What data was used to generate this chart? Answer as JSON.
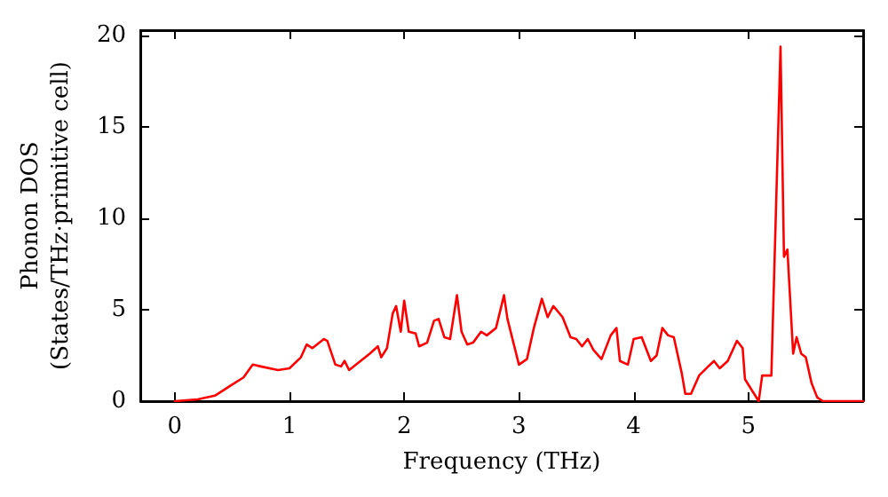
{
  "chart_data": {
    "type": "line",
    "xlabel": "Frequency (THz)",
    "ylabel": "Phonon DOS\n(States/THz·primitive cell)",
    "xlim": [
      -0.3,
      6.0
    ],
    "xticks": [
      0,
      1,
      2,
      3,
      4,
      5
    ],
    "ylim": [
      0,
      20.3
    ],
    "yticks": [
      0,
      5,
      10,
      15,
      20
    ],
    "grid": false,
    "marker": "none",
    "line_style": "solid",
    "x": [
      0,
      0.2,
      0.35,
      0.5,
      0.6,
      0.68,
      0.75,
      0.9,
      1.0,
      1.1,
      1.15,
      1.2,
      1.3,
      1.33,
      1.4,
      1.45,
      1.48,
      1.52,
      1.6,
      1.7,
      1.77,
      1.8,
      1.85,
      1.9,
      1.93,
      1.97,
      2.0,
      2.04,
      2.1,
      2.13,
      2.2,
      2.26,
      2.3,
      2.35,
      2.4,
      2.46,
      2.5,
      2.55,
      2.6,
      2.67,
      2.72,
      2.8,
      2.87,
      2.9,
      3.0,
      3.07,
      3.13,
      3.2,
      3.25,
      3.3,
      3.38,
      3.45,
      3.5,
      3.55,
      3.6,
      3.65,
      3.72,
      3.8,
      3.85,
      3.88,
      3.95,
      4.0,
      4.07,
      4.15,
      4.2,
      4.25,
      4.3,
      4.35,
      4.42,
      4.45,
      4.5,
      4.57,
      4.65,
      4.7,
      4.75,
      4.82,
      4.9,
      4.95,
      4.97,
      5.05,
      5.09,
      5.12,
      5.2,
      5.28,
      5.31,
      5.34,
      5.39,
      5.42,
      5.46,
      5.5,
      5.55,
      5.6,
      5.65,
      6.0
    ],
    "series": [
      {
        "color": "#ff0000",
        "values": [
          0,
          0.1,
          0.3,
          0.9,
          1.3,
          2.0,
          1.9,
          1.7,
          1.8,
          2.4,
          3.1,
          2.9,
          3.4,
          3.3,
          2.0,
          1.9,
          2.2,
          1.7,
          2.1,
          2.6,
          3.0,
          2.4,
          2.9,
          4.8,
          5.2,
          3.8,
          5.5,
          3.8,
          3.7,
          3.0,
          3.2,
          4.4,
          4.5,
          3.5,
          3.4,
          5.8,
          3.8,
          3.1,
          3.2,
          3.8,
          3.6,
          4.0,
          5.8,
          4.5,
          2.0,
          2.3,
          4.0,
          5.6,
          4.6,
          5.2,
          4.6,
          3.5,
          3.4,
          3.0,
          3.4,
          2.8,
          2.3,
          3.6,
          4.0,
          2.2,
          2.0,
          3.4,
          3.5,
          2.2,
          2.5,
          4.0,
          3.6,
          3.5,
          1.5,
          0.4,
          0.4,
          1.4,
          1.9,
          2.2,
          1.8,
          2.2,
          3.3,
          2.9,
          1.2,
          0.4,
          0.0,
          1.4,
          1.4,
          19.4,
          7.9,
          8.3,
          2.6,
          3.5,
          2.6,
          2.4,
          1.0,
          0.2,
          0,
          0
        ]
      }
    ]
  }
}
